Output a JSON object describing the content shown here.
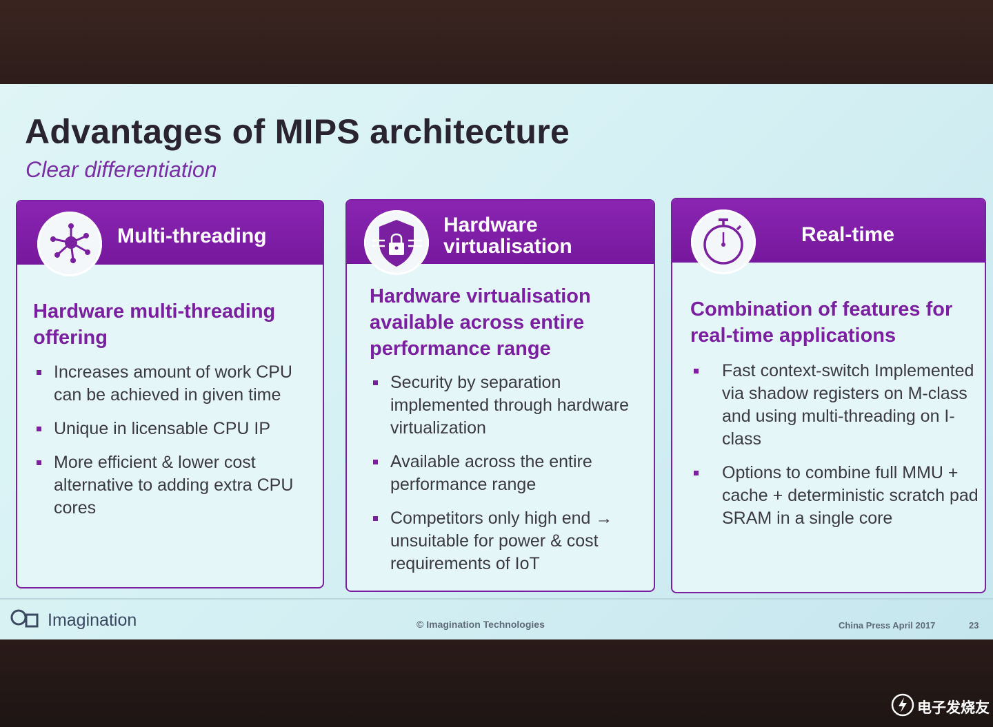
{
  "slide": {
    "title": "Advantages of MIPS architecture",
    "subtitle": "Clear differentiation"
  },
  "cards": [
    {
      "icon": "network-nodes-icon",
      "header_title": "Multi-threading",
      "heading": "Hardware multi-threading offering",
      "bullets": [
        "Increases amount of work CPU can be achieved in given time",
        "Unique in licensable CPU IP",
        "More efficient & lower cost alternative to adding extra CPU cores"
      ]
    },
    {
      "icon": "shield-lock-icon",
      "header_title_line1": "Hardware",
      "header_title_line2": "virtualisation",
      "heading": "Hardware virtualisation available across entire performance range",
      "bullets": [
        "Security by separation implemented through hardware virtualization",
        "Available across the entire performance range",
        "Competitors only high end → unsuitable for power & cost requirements of IoT"
      ]
    },
    {
      "icon": "stopwatch-icon",
      "header_title": "Real-time",
      "heading": "Combination of features for real-time applications",
      "bullets": [
        "Fast context-switch Implemented via shadow registers on M-class and using multi-threading on I-class",
        "Options to combine full MMU + cache + deterministic scratch pad SRAM in a single core"
      ]
    }
  ],
  "footer": {
    "brand": "Imagination",
    "copyright": "© Imagination Technologies",
    "event": "China Press April 2017",
    "page": "23"
  },
  "watermark": {
    "text": "电子发烧友"
  },
  "colors": {
    "accent": "#7a1fa0",
    "slide_bg": "#dff5f6",
    "screen_frame": "#2d1d1a"
  }
}
